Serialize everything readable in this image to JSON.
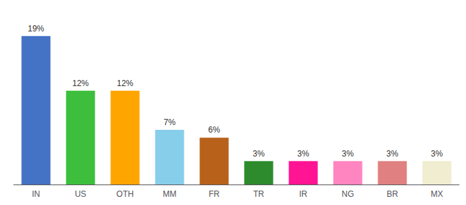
{
  "chart_data": {
    "type": "bar",
    "categories": [
      "IN",
      "US",
      "OTH",
      "MM",
      "FR",
      "TR",
      "IR",
      "NG",
      "BR",
      "MX"
    ],
    "values": [
      19,
      12,
      12,
      7,
      6,
      3,
      3,
      3,
      3,
      3
    ],
    "value_labels": [
      "19%",
      "12%",
      "12%",
      "7%",
      "6%",
      "3%",
      "3%",
      "3%",
      "3%",
      "3%"
    ],
    "colors": [
      "#4472C4",
      "#3DBF3D",
      "#FFA500",
      "#87CEEB",
      "#B8611A",
      "#2D8B2D",
      "#FF1493",
      "#FF85C0",
      "#E08080",
      "#F0EDD0"
    ],
    "ylim": [
      0,
      21
    ],
    "data_labels": true,
    "grid": false,
    "tick_labels": "x"
  }
}
